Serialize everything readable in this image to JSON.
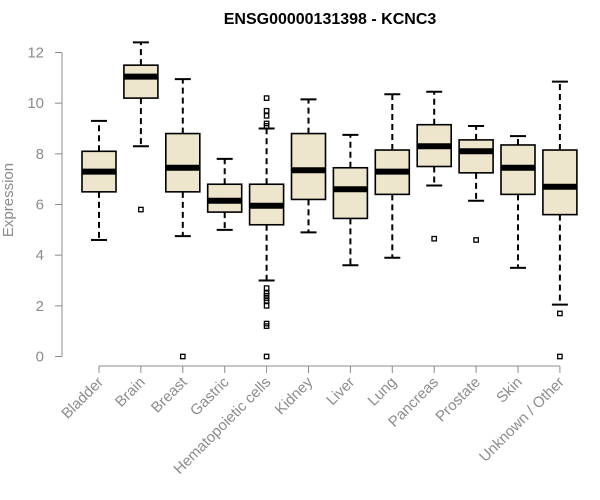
{
  "chart_data": {
    "type": "box",
    "title": "ENSG00000131398 - KCNC3",
    "xlabel": "",
    "ylabel": "Expression",
    "ylim": [
      0,
      12
    ],
    "yticks": [
      "0",
      "2",
      "4",
      "6",
      "8",
      "10",
      "12"
    ],
    "categories": [
      "Bladder",
      "Brain",
      "Breast",
      "Gastric",
      "Hematopoietic cells",
      "Kidney",
      "Liver",
      "Lung",
      "Pancreas",
      "Prostate",
      "Skin",
      "Unknown / Other"
    ],
    "boxes": [
      {
        "whisker_low": 4.6,
        "q1": 6.5,
        "median": 7.3,
        "q3": 8.1,
        "whisker_high": 9.3,
        "outliers": []
      },
      {
        "whisker_low": 8.3,
        "q1": 10.2,
        "median": 11.05,
        "q3": 11.5,
        "whisker_high": 12.4,
        "outliers": [
          5.8
        ]
      },
      {
        "whisker_low": 4.75,
        "q1": 6.5,
        "median": 7.45,
        "q3": 8.8,
        "whisker_high": 10.95,
        "outliers": [
          0
        ]
      },
      {
        "whisker_low": 5.0,
        "q1": 5.7,
        "median": 6.15,
        "q3": 6.8,
        "whisker_high": 7.8,
        "outliers": []
      },
      {
        "whisker_low": 3.0,
        "q1": 5.2,
        "median": 5.95,
        "q3": 6.8,
        "whisker_high": 9.0,
        "outliers": [
          10.2,
          9.7,
          9.5,
          9.2,
          9.1,
          2.7,
          2.5,
          2.4,
          2.3,
          2.2,
          2.0,
          1.3,
          1.2,
          0
        ]
      },
      {
        "whisker_low": 4.9,
        "q1": 6.2,
        "median": 7.35,
        "q3": 8.8,
        "whisker_high": 10.15,
        "outliers": []
      },
      {
        "whisker_low": 3.6,
        "q1": 5.45,
        "median": 6.6,
        "q3": 7.45,
        "whisker_high": 8.75,
        "outliers": []
      },
      {
        "whisker_low": 3.9,
        "q1": 6.4,
        "median": 7.3,
        "q3": 8.15,
        "whisker_high": 10.35,
        "outliers": []
      },
      {
        "whisker_low": 6.75,
        "q1": 7.5,
        "median": 8.3,
        "q3": 9.15,
        "whisker_high": 10.45,
        "outliers": [
          4.65
        ]
      },
      {
        "whisker_low": 6.15,
        "q1": 7.25,
        "median": 8.1,
        "q3": 8.55,
        "whisker_high": 9.1,
        "outliers": [
          4.6
        ]
      },
      {
        "whisker_low": 3.5,
        "q1": 6.4,
        "median": 7.45,
        "q3": 8.35,
        "whisker_high": 8.7,
        "outliers": []
      },
      {
        "whisker_low": 2.05,
        "q1": 5.6,
        "median": 6.7,
        "q3": 8.15,
        "whisker_high": 10.85,
        "outliers": [
          1.7,
          0
        ]
      }
    ],
    "colors": {
      "box_fill": "#ede6cc",
      "box_stroke": "#000000",
      "median": "#000000",
      "axis": "#8c8c8c",
      "outlier": "#000000"
    },
    "grid": false,
    "legend": "none"
  }
}
